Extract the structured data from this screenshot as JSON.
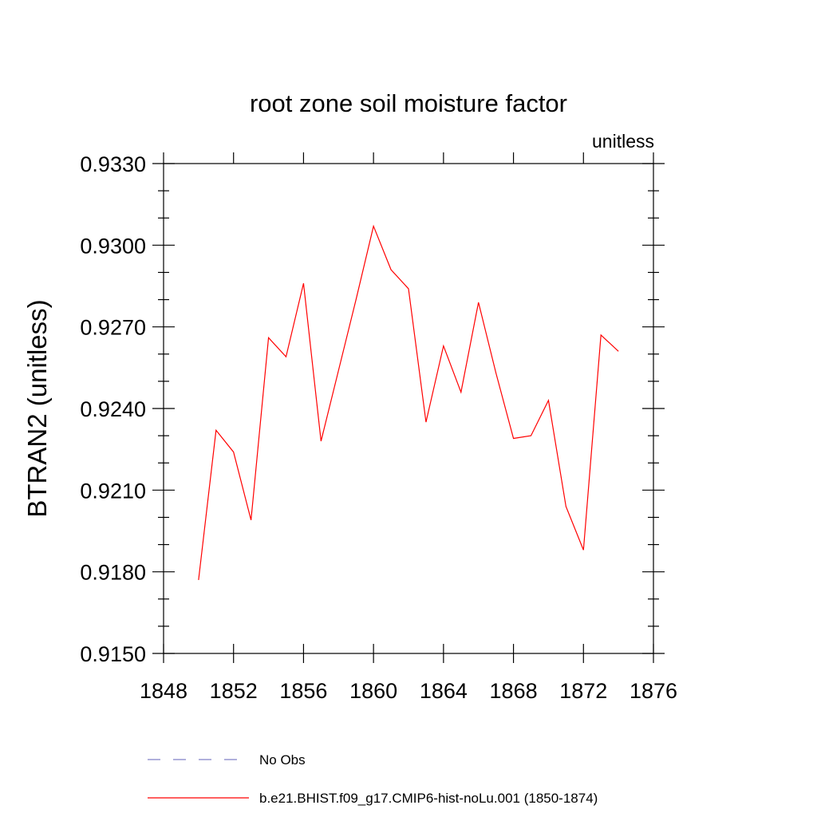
{
  "chart_data": {
    "type": "line",
    "title": "root zone soil moisture factor",
    "units_label": "unitless",
    "ylabel": "BTRAN2  (unitless)",
    "xlabel": "",
    "xlim": [
      1848,
      1876
    ],
    "ylim": [
      0.915,
      0.933
    ],
    "x_ticks": [
      1848,
      1852,
      1856,
      1860,
      1864,
      1868,
      1872,
      1876
    ],
    "y_ticks": [
      0.915,
      0.918,
      0.921,
      0.924,
      0.927,
      0.93,
      0.933
    ],
    "x_tick_labels": [
      "1848",
      "1852",
      "1856",
      "1860",
      "1864",
      "1868",
      "1872",
      "1876"
    ],
    "y_tick_labels": [
      "0.9150",
      "0.9180",
      "0.9210",
      "0.9240",
      "0.9270",
      "0.9300",
      "0.9330"
    ],
    "grid": false,
    "legend_position": "bottom",
    "series": [
      {
        "name": "No Obs",
        "color": "#8080c8",
        "dash": "dashed",
        "x": [],
        "y": []
      },
      {
        "name": "b.e21.BHIST.f09_g17.CMIP6-hist-noLu.001 (1850-1874)",
        "color": "#ff0000",
        "dash": "solid",
        "x": [
          1850,
          1851,
          1852,
          1853,
          1854,
          1855,
          1856,
          1857,
          1858,
          1859,
          1860,
          1861,
          1862,
          1863,
          1864,
          1865,
          1866,
          1867,
          1868,
          1869,
          1870,
          1871,
          1872,
          1873,
          1874
        ],
        "y": [
          0.9177,
          0.9232,
          0.9224,
          0.9199,
          0.9266,
          0.9259,
          0.9286,
          0.9228,
          0.9254,
          0.928,
          0.9307,
          0.9291,
          0.9284,
          0.9235,
          0.9263,
          0.9246,
          0.9279,
          0.9253,
          0.9229,
          0.923,
          0.9243,
          0.9204,
          0.9188,
          0.9267,
          0.9261
        ]
      }
    ]
  }
}
